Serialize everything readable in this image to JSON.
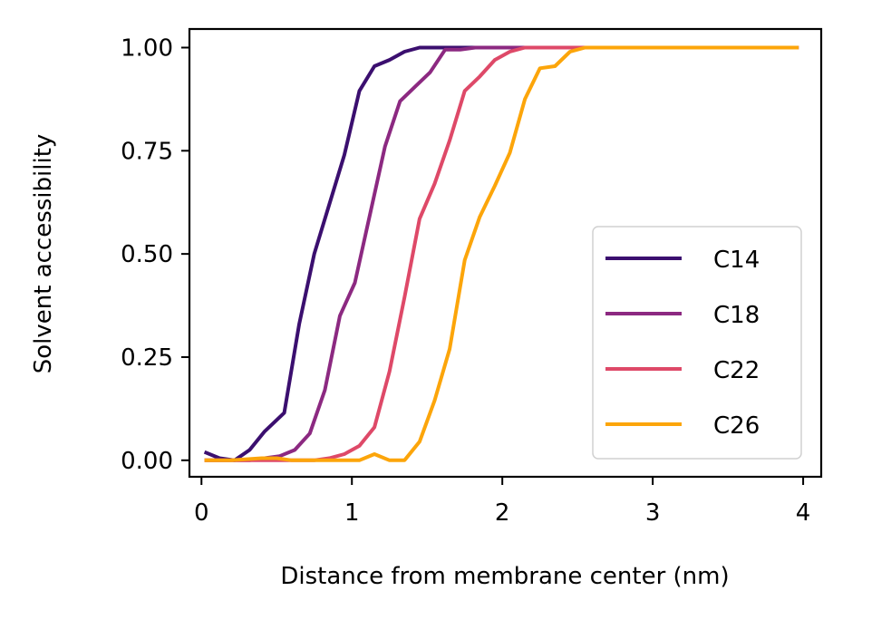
{
  "chart_data": {
    "type": "line",
    "title": "",
    "xlabel": "Distance from membrane center (nm)",
    "ylabel": "Solvent accessibility",
    "xlim": [
      -0.08,
      4.12
    ],
    "ylim": [
      -0.04,
      1.045
    ],
    "xticks": [
      0,
      1,
      2,
      3,
      4
    ],
    "xtick_labels": [
      "0",
      "1",
      "2",
      "3",
      "4"
    ],
    "yticks": [
      0.0,
      0.25,
      0.5,
      0.75,
      1.0
    ],
    "ytick_labels": [
      "0.00",
      "0.25",
      "0.50",
      "0.75",
      "1.00"
    ],
    "grid": false,
    "legend_position": "lower-right",
    "series": [
      {
        "name": "C14",
        "color": "#3b0f6f",
        "x": [
          0.02,
          0.12,
          0.22,
          0.32,
          0.42,
          0.55,
          0.65,
          0.75,
          0.85,
          0.95,
          1.05,
          1.15,
          1.25,
          1.35,
          1.45,
          1.6,
          2.0,
          3.0,
          3.97
        ],
        "y": [
          0.02,
          0.005,
          0.0,
          0.025,
          0.07,
          0.115,
          0.33,
          0.5,
          0.62,
          0.74,
          0.895,
          0.955,
          0.97,
          0.99,
          1.0,
          1.0,
          1.0,
          1.0,
          1.0
        ]
      },
      {
        "name": "C18",
        "color": "#8c2981",
        "x": [
          0.02,
          0.12,
          0.22,
          0.32,
          0.42,
          0.52,
          0.62,
          0.72,
          0.82,
          0.92,
          1.02,
          1.12,
          1.22,
          1.32,
          1.42,
          1.52,
          1.62,
          1.72,
          1.82,
          2.0,
          3.0,
          3.97
        ],
        "y": [
          0.0,
          0.0,
          0.0,
          0.0,
          0.005,
          0.01,
          0.025,
          0.065,
          0.17,
          0.35,
          0.43,
          0.595,
          0.76,
          0.87,
          0.905,
          0.94,
          0.995,
          0.995,
          1.0,
          1.0,
          1.0,
          1.0
        ]
      },
      {
        "name": "C22",
        "color": "#de4968",
        "x": [
          0.02,
          0.2,
          0.4,
          0.6,
          0.75,
          0.85,
          0.95,
          1.05,
          1.15,
          1.25,
          1.35,
          1.45,
          1.55,
          1.65,
          1.75,
          1.85,
          1.95,
          2.05,
          2.15,
          2.25,
          2.5,
          3.0,
          3.97
        ],
        "y": [
          0.0,
          0.0,
          0.0,
          0.0,
          0.0,
          0.005,
          0.015,
          0.035,
          0.08,
          0.215,
          0.395,
          0.585,
          0.67,
          0.775,
          0.895,
          0.93,
          0.97,
          0.99,
          1.0,
          1.0,
          1.0,
          1.0,
          1.0
        ]
      },
      {
        "name": "C26",
        "color": "#fca50a",
        "x": [
          0.02,
          0.2,
          0.4,
          0.5,
          0.6,
          0.8,
          1.05,
          1.15,
          1.25,
          1.35,
          1.45,
          1.55,
          1.65,
          1.75,
          1.85,
          1.95,
          2.05,
          2.15,
          2.25,
          2.35,
          2.45,
          2.55,
          2.65,
          3.0,
          3.97
        ],
        "y": [
          0.0,
          0.0,
          0.005,
          0.005,
          0.0,
          0.0,
          0.0,
          0.015,
          0.0,
          0.0,
          0.045,
          0.145,
          0.27,
          0.485,
          0.59,
          0.665,
          0.745,
          0.875,
          0.95,
          0.955,
          0.99,
          1.0,
          1.0,
          1.0,
          1.0
        ]
      }
    ]
  }
}
